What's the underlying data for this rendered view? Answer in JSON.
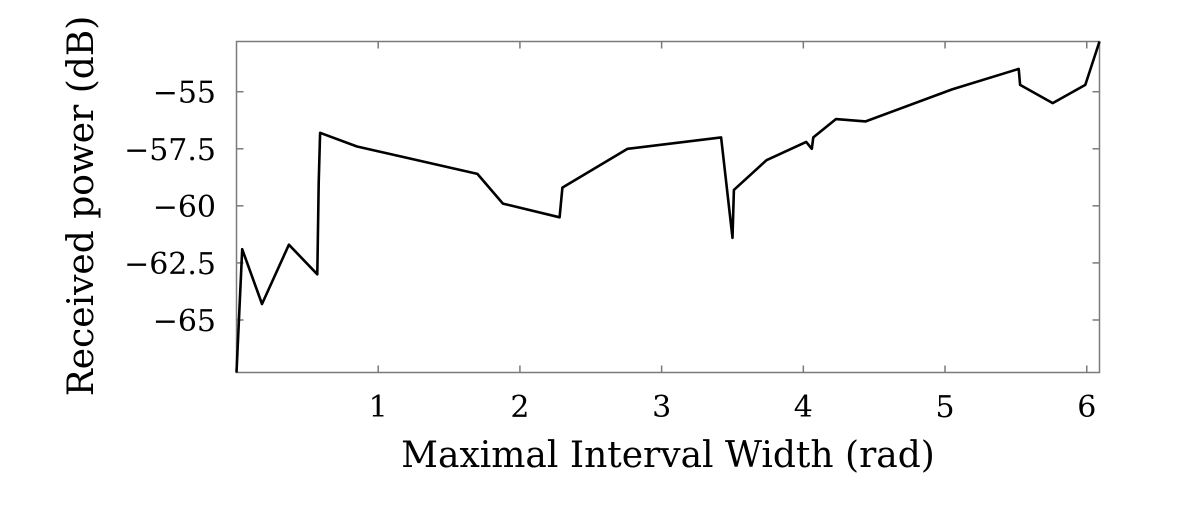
{
  "chart_data": {
    "type": "line",
    "title": "",
    "xlabel": "Maximal Interval Width (rad)",
    "ylabel": "Received power (dB)",
    "xlim": [
      0.0,
      6.09
    ],
    "ylim": [
      -67.3,
      -52.8
    ],
    "xticks": [
      1,
      2,
      3,
      4,
      5,
      6
    ],
    "xtick_labels": [
      "1",
      "2",
      "3",
      "4",
      "5",
      "6"
    ],
    "yticks": [
      -55,
      -57.5,
      -60,
      -62.5,
      -65
    ],
    "ytick_labels": [
      "−55",
      "−57.5",
      "−60",
      "−62.5",
      "−65"
    ],
    "grid": false,
    "legend": "none",
    "series": [
      {
        "color": "#000000",
        "x": [
          0.0,
          0.04,
          0.18,
          0.37,
          0.57,
          0.58,
          0.59,
          0.85,
          1.7,
          1.88,
          2.28,
          2.3,
          2.76,
          3.42,
          3.5,
          3.51,
          3.74,
          4.02,
          4.06,
          4.07,
          4.23,
          4.44,
          5.05,
          5.52,
          5.53,
          5.76,
          5.99,
          6.09
        ],
        "y": [
          -67.3,
          -61.9,
          -64.3,
          -61.7,
          -63.0,
          -59.0,
          -56.8,
          -57.4,
          -58.6,
          -59.9,
          -60.5,
          -59.2,
          -57.5,
          -57.0,
          -61.4,
          -59.3,
          -58.0,
          -57.2,
          -57.5,
          -57.0,
          -56.2,
          -56.3,
          -54.9,
          -54.0,
          -54.7,
          -55.5,
          -54.7,
          -52.8
        ]
      }
    ]
  }
}
